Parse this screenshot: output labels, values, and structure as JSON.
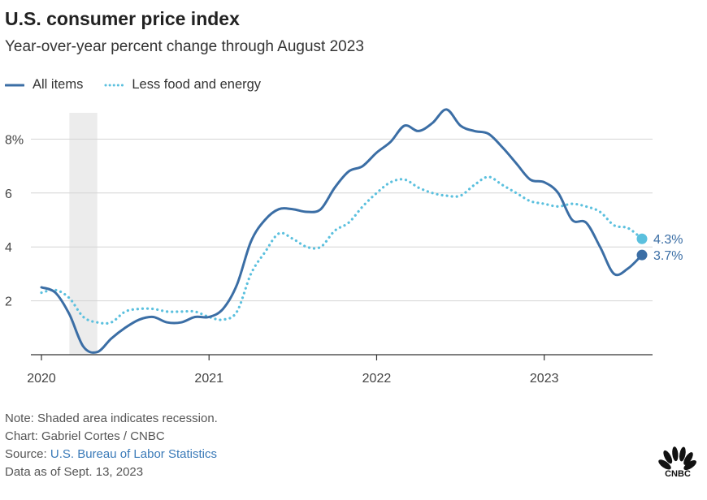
{
  "chart_data": {
    "type": "line",
    "title": "U.S. consumer price index",
    "subtitle": "Year-over-year percent change through August 2023",
    "ylim": [
      0,
      9.5
    ],
    "yticks": [
      {
        "value": 2,
        "label": "2"
      },
      {
        "value": 4,
        "label": "4"
      },
      {
        "value": 6,
        "label": "6"
      },
      {
        "value": 8,
        "label": "8%"
      }
    ],
    "xlim": [
      "2020-01",
      "2023-08"
    ],
    "xticks": [
      {
        "value": "2020-01",
        "label": "2020"
      },
      {
        "value": "2021-01",
        "label": "2021"
      },
      {
        "value": "2022-01",
        "label": "2022"
      },
      {
        "value": "2023-01",
        "label": "2023"
      }
    ],
    "recession": {
      "start": "2020-03",
      "end": "2020-05"
    },
    "grid": true,
    "legend_position": "top-left",
    "series": [
      {
        "name": "All items",
        "color": "#3b6ea5",
        "style": "solid",
        "end_label": "3.7%",
        "points": [
          [
            "2020-01",
            2.5
          ],
          [
            "2020-02",
            2.3
          ],
          [
            "2020-03",
            1.5
          ],
          [
            "2020-04",
            0.3
          ],
          [
            "2020-05",
            0.1
          ],
          [
            "2020-06",
            0.6
          ],
          [
            "2020-07",
            1.0
          ],
          [
            "2020-08",
            1.3
          ],
          [
            "2020-09",
            1.4
          ],
          [
            "2020-10",
            1.2
          ],
          [
            "2020-11",
            1.2
          ],
          [
            "2020-12",
            1.4
          ],
          [
            "2021-01",
            1.4
          ],
          [
            "2021-02",
            1.7
          ],
          [
            "2021-03",
            2.6
          ],
          [
            "2021-04",
            4.2
          ],
          [
            "2021-05",
            5.0
          ],
          [
            "2021-06",
            5.4
          ],
          [
            "2021-07",
            5.4
          ],
          [
            "2021-08",
            5.3
          ],
          [
            "2021-09",
            5.4
          ],
          [
            "2021-10",
            6.2
          ],
          [
            "2021-11",
            6.8
          ],
          [
            "2021-12",
            7.0
          ],
          [
            "2022-01",
            7.5
          ],
          [
            "2022-02",
            7.9
          ],
          [
            "2022-03",
            8.5
          ],
          [
            "2022-04",
            8.3
          ],
          [
            "2022-05",
            8.6
          ],
          [
            "2022-06",
            9.1
          ],
          [
            "2022-07",
            8.5
          ],
          [
            "2022-08",
            8.3
          ],
          [
            "2022-09",
            8.2
          ],
          [
            "2022-10",
            7.7
          ],
          [
            "2022-11",
            7.1
          ],
          [
            "2022-12",
            6.5
          ],
          [
            "2023-01",
            6.4
          ],
          [
            "2023-02",
            6.0
          ],
          [
            "2023-03",
            5.0
          ],
          [
            "2023-04",
            4.9
          ],
          [
            "2023-05",
            4.0
          ],
          [
            "2023-06",
            3.0
          ],
          [
            "2023-07",
            3.2
          ],
          [
            "2023-08",
            3.7
          ]
        ]
      },
      {
        "name": "Less food and energy",
        "color": "#5bc0de",
        "style": "dotted",
        "end_label": "4.3%",
        "points": [
          [
            "2020-01",
            2.3
          ],
          [
            "2020-02",
            2.4
          ],
          [
            "2020-03",
            2.1
          ],
          [
            "2020-04",
            1.4
          ],
          [
            "2020-05",
            1.2
          ],
          [
            "2020-06",
            1.2
          ],
          [
            "2020-07",
            1.6
          ],
          [
            "2020-08",
            1.7
          ],
          [
            "2020-09",
            1.7
          ],
          [
            "2020-10",
            1.6
          ],
          [
            "2020-11",
            1.6
          ],
          [
            "2020-12",
            1.6
          ],
          [
            "2021-01",
            1.4
          ],
          [
            "2021-02",
            1.3
          ],
          [
            "2021-03",
            1.6
          ],
          [
            "2021-04",
            3.0
          ],
          [
            "2021-05",
            3.8
          ],
          [
            "2021-06",
            4.5
          ],
          [
            "2021-07",
            4.3
          ],
          [
            "2021-08",
            4.0
          ],
          [
            "2021-09",
            4.0
          ],
          [
            "2021-10",
            4.6
          ],
          [
            "2021-11",
            4.9
          ],
          [
            "2021-12",
            5.5
          ],
          [
            "2022-01",
            6.0
          ],
          [
            "2022-02",
            6.4
          ],
          [
            "2022-03",
            6.5
          ],
          [
            "2022-04",
            6.2
          ],
          [
            "2022-05",
            6.0
          ],
          [
            "2022-06",
            5.9
          ],
          [
            "2022-07",
            5.9
          ],
          [
            "2022-08",
            6.3
          ],
          [
            "2022-09",
            6.6
          ],
          [
            "2022-10",
            6.3
          ],
          [
            "2022-11",
            6.0
          ],
          [
            "2022-12",
            5.7
          ],
          [
            "2023-01",
            5.6
          ],
          [
            "2023-02",
            5.5
          ],
          [
            "2023-03",
            5.6
          ],
          [
            "2023-04",
            5.5
          ],
          [
            "2023-05",
            5.3
          ],
          [
            "2023-06",
            4.8
          ],
          [
            "2023-07",
            4.7
          ],
          [
            "2023-08",
            4.3
          ]
        ]
      }
    ]
  },
  "footer": {
    "note": "Note: Shaded area indicates recession.",
    "credit": "Chart: Gabriel Cortes / CNBC",
    "source_prefix": "Source: ",
    "source_link": "U.S. Bureau of Labor Statistics",
    "data_as_of": "Data as of Sept. 13, 2023"
  },
  "logo": {
    "text": "CNBC",
    "icon": "cnbc-peacock-icon"
  }
}
